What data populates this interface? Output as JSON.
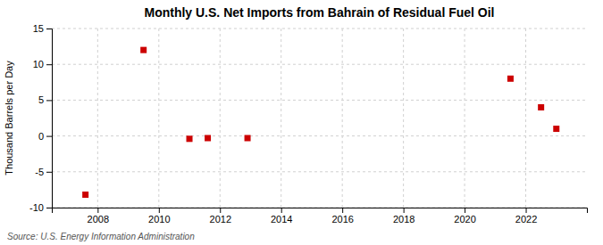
{
  "chart_data": {
    "type": "scatter",
    "title": "Monthly U.S. Net Imports from Bahrain of Residual Fuel Oil",
    "ylabel": "Thousand Barrels per Day",
    "annotations": [
      "Source: U.S. Energy Information Administration"
    ],
    "x": [
      2007.6,
      2009.5,
      2011.0,
      2011.6,
      2012.9,
      2021.5,
      2022.5,
      2023.0
    ],
    "values": [
      -8.2,
      12.0,
      -0.4,
      -0.3,
      -0.3,
      8.0,
      4.0,
      1.0
    ],
    "color": "#cc0000",
    "marker": "square",
    "xlim": [
      2006.5,
      2024.0
    ],
    "xticks": [
      2008,
      2010,
      2012,
      2014,
      2016,
      2018,
      2020,
      2022
    ],
    "ylim": [
      -10,
      15
    ],
    "yticks": [
      -10,
      -5,
      0,
      5,
      10,
      15
    ],
    "grid": true
  }
}
